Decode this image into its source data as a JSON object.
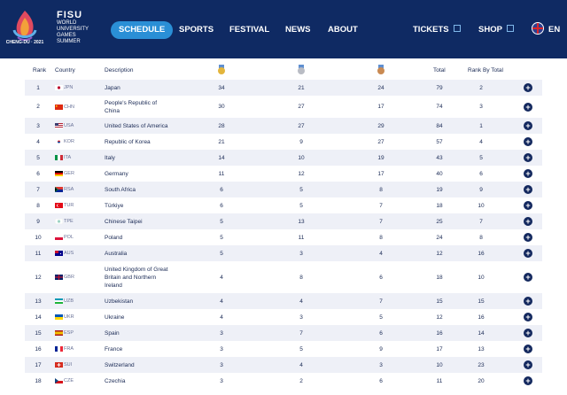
{
  "header": {
    "logo_text": "CHENG-DU · 2021",
    "org_name": "FISU",
    "org_sub": [
      "World",
      "University",
      "Games",
      "Summer"
    ],
    "nav": [
      {
        "label": "SCHEDULE"
      },
      {
        "label": "SPORTS"
      },
      {
        "label": "FESTIVAL"
      },
      {
        "label": "NEWS"
      },
      {
        "label": "ABOUT"
      }
    ],
    "tickets_label": "TICKETS",
    "shop_label": "SHOP",
    "lang_label": "EN"
  },
  "table": {
    "headers": {
      "rank": "Rank",
      "country": "Country",
      "description": "Description",
      "total": "Total",
      "rank_by_total": "Rank By Total"
    },
    "medal_icons": [
      "gold-medal-icon",
      "silver-medal-icon",
      "bronze-medal-icon"
    ],
    "rows": [
      {
        "rank": "1",
        "code": "JPN",
        "flag": "jpn",
        "desc": [
          "Japan"
        ],
        "gold": "34",
        "silver": "21",
        "bronze": "24",
        "total": "79",
        "rbt": "2"
      },
      {
        "rank": "2",
        "code": "CHN",
        "flag": "chn",
        "desc": [
          "People's Republic of",
          "China"
        ],
        "gold": "30",
        "silver": "27",
        "bronze": "17",
        "total": "74",
        "rbt": "3"
      },
      {
        "rank": "3",
        "code": "USA",
        "flag": "usa",
        "desc": [
          "United States of America"
        ],
        "gold": "28",
        "silver": "27",
        "bronze": "29",
        "total": "84",
        "rbt": "1"
      },
      {
        "rank": "4",
        "code": "KOR",
        "flag": "kor",
        "desc": [
          "Republic of Korea"
        ],
        "gold": "21",
        "silver": "9",
        "bronze": "27",
        "total": "57",
        "rbt": "4"
      },
      {
        "rank": "5",
        "code": "ITA",
        "flag": "ita",
        "desc": [
          "Italy"
        ],
        "gold": "14",
        "silver": "10",
        "bronze": "19",
        "total": "43",
        "rbt": "5"
      },
      {
        "rank": "6",
        "code": "GER",
        "flag": "ger",
        "desc": [
          "Germany"
        ],
        "gold": "11",
        "silver": "12",
        "bronze": "17",
        "total": "40",
        "rbt": "6"
      },
      {
        "rank": "7",
        "code": "RSA",
        "flag": "rsa",
        "desc": [
          "South Africa"
        ],
        "gold": "6",
        "silver": "5",
        "bronze": "8",
        "total": "19",
        "rbt": "9"
      },
      {
        "rank": "8",
        "code": "TUR",
        "flag": "tur",
        "desc": [
          "Türkiye"
        ],
        "gold": "6",
        "silver": "5",
        "bronze": "7",
        "total": "18",
        "rbt": "10"
      },
      {
        "rank": "9",
        "code": "TPE",
        "flag": "tpe",
        "desc": [
          "Chinese Taipei"
        ],
        "gold": "5",
        "silver": "13",
        "bronze": "7",
        "total": "25",
        "rbt": "7"
      },
      {
        "rank": "10",
        "code": "POL",
        "flag": "pol",
        "desc": [
          "Poland"
        ],
        "gold": "5",
        "silver": "11",
        "bronze": "8",
        "total": "24",
        "rbt": "8"
      },
      {
        "rank": "11",
        "code": "AUS",
        "flag": "aus",
        "desc": [
          "Australia"
        ],
        "gold": "5",
        "silver": "3",
        "bronze": "4",
        "total": "12",
        "rbt": "16"
      },
      {
        "rank": "12",
        "code": "GBR",
        "flag": "gbr",
        "desc": [
          "United Kingdom of Great",
          "Britain and Northern",
          "Ireland"
        ],
        "gold": "4",
        "silver": "8",
        "bronze": "6",
        "total": "18",
        "rbt": "10"
      },
      {
        "rank": "13",
        "code": "UZB",
        "flag": "uzb",
        "desc": [
          "Uzbekistan"
        ],
        "gold": "4",
        "silver": "4",
        "bronze": "7",
        "total": "15",
        "rbt": "15"
      },
      {
        "rank": "14",
        "code": "UKR",
        "flag": "ukr",
        "desc": [
          "Ukraine"
        ],
        "gold": "4",
        "silver": "3",
        "bronze": "5",
        "total": "12",
        "rbt": "16"
      },
      {
        "rank": "15",
        "code": "ESP",
        "flag": "esp",
        "desc": [
          "Spain"
        ],
        "gold": "3",
        "silver": "7",
        "bronze": "6",
        "total": "16",
        "rbt": "14"
      },
      {
        "rank": "16",
        "code": "FRA",
        "flag": "fra",
        "desc": [
          "France"
        ],
        "gold": "3",
        "silver": "5",
        "bronze": "9",
        "total": "17",
        "rbt": "13"
      },
      {
        "rank": "17",
        "code": "SUI",
        "flag": "sui",
        "desc": [
          "Switzerland"
        ],
        "gold": "3",
        "silver": "4",
        "bronze": "3",
        "total": "10",
        "rbt": "23"
      },
      {
        "rank": "18",
        "code": "CZE",
        "flag": "cze",
        "desc": [
          "Czechia"
        ],
        "gold": "3",
        "silver": "2",
        "bronze": "6",
        "total": "11",
        "rbt": "20"
      }
    ]
  },
  "colors": {
    "header_bg": "#0f2a63",
    "active_nav": "#2a8fd6",
    "row_alt": "#eef0f7",
    "text": "#1a2a55",
    "gold": "#e3b53c",
    "silver": "#b9bcc4",
    "bronze": "#c98a52"
  }
}
